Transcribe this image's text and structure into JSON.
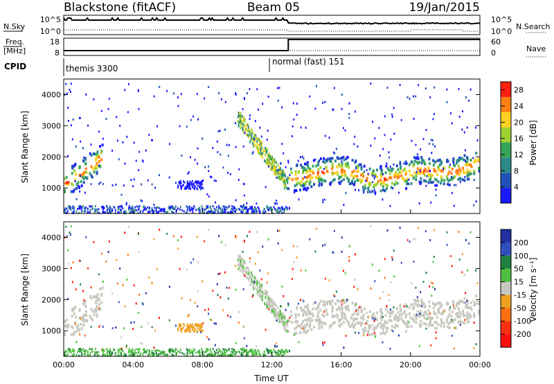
{
  "header": {
    "station": "Blackstone (fitACF)",
    "beam": "Beam 05",
    "date": "19/Jan/2015"
  },
  "top_panel": {
    "left_label_1": "N.Sky",
    "left_label_2": "Freq.",
    "left_label_3": "[MHz]",
    "left_label_4": "CPID",
    "right_label_1": "N.Search",
    "right_label_2": "Nave",
    "noise_ticks_left": [
      "10^5",
      "10^0"
    ],
    "noise_ticks_right": [
      "10^5",
      "10^0"
    ],
    "freq_ticks": [
      "18",
      "8"
    ],
    "nave_ticks": [
      "60",
      "0"
    ],
    "cpid_segments": [
      {
        "name": "themis 3300",
        "start_hour": 0,
        "end_hour": 11.8
      },
      {
        "name": "normal (fast) 151",
        "start_hour": 11.8,
        "end_hour": 24
      }
    ]
  },
  "chart_data": [
    {
      "type": "heatmap",
      "title": "Power",
      "ylabel": "Slant Range [km]",
      "xlabel": "",
      "xlim": [
        0,
        24
      ],
      "ylim": [
        180,
        4500
      ],
      "yticks": [
        1000,
        2000,
        3000,
        4000
      ],
      "colorbar": {
        "label": "Power [dB]",
        "ticks": [
          4,
          8,
          12,
          16,
          20,
          24,
          28
        ],
        "range": [
          0,
          30
        ],
        "colors": [
          "#1a1aff",
          "#2050b8",
          "#2e8a8a",
          "#35a55a",
          "#9fd030",
          "#ffd020",
          "#ff8010",
          "#ff2010"
        ]
      },
      "echo_bands": [
        {
          "start_hour": 0.0,
          "end_hour": 2.2,
          "range_start_km": 1100,
          "range_end_km": 2200,
          "power_db": 24
        },
        {
          "start_hour": 12.9,
          "end_hour": 23.0,
          "range_start_km": 1400,
          "range_end_km": 1600,
          "power_db": 26
        },
        {
          "start_hour": 10.0,
          "end_hour": 12.8,
          "range_start_km": 1200,
          "range_end_km": 3300,
          "power_db": 12
        }
      ]
    },
    {
      "type": "heatmap",
      "title": "Velocity",
      "ylabel": "Slant Range [km]",
      "xlabel": "Time UT",
      "xlim": [
        0,
        24
      ],
      "ylim": [
        180,
        4500
      ],
      "yticks": [
        1000,
        2000,
        3000,
        4000
      ],
      "xticks": [
        "00:00",
        "04:00",
        "08:00",
        "12:00",
        "16:00",
        "20:00",
        "00:00"
      ],
      "colorbar": {
        "label": "Velocity [m s⁻¹]",
        "ticks": [
          200,
          100,
          50,
          15,
          -15,
          -50,
          -100,
          -200
        ],
        "colors": [
          "#2030a0",
          "#3050c0",
          "#208040",
          "#50c040",
          "#c8c8c0",
          "#f0a020",
          "#ff7010",
          "#ff3010",
          "#ff1010"
        ]
      }
    }
  ]
}
